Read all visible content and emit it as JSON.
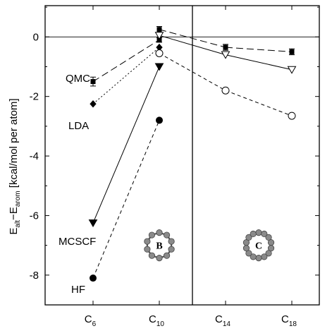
{
  "chart_data": {
    "type": "line",
    "ylabel": {
      "pre": "E",
      "sub1": "alt",
      "mid": "−E",
      "sub2": "arom",
      "post": " [kcal/mol per atom]"
    },
    "ylim": [
      -9,
      1.05
    ],
    "y_ticks": [
      0,
      -2,
      -4,
      -6,
      -8
    ],
    "y_tick_labels": [
      "0",
      "-2",
      "-4",
      "-6",
      "-8"
    ],
    "categories": [
      {
        "base": "C",
        "sub": "6"
      },
      {
        "base": "C",
        "sub": "10"
      },
      {
        "base": "C",
        "sub": "14"
      },
      {
        "base": "C",
        "sub": "18"
      }
    ],
    "divider_between": [
      1,
      2
    ],
    "zero_line": true,
    "series": [
      {
        "name": "QMC",
        "marker": "square-errorbar",
        "dash": "10,5",
        "values": [
          [
            0,
            -1.5
          ],
          [
            1,
            -0.1
          ],
          [
            1,
            0.25
          ],
          [
            2,
            -0.35
          ],
          [
            3,
            -0.5
          ]
        ],
        "links": [
          [
            0,
            1
          ],
          [
            2,
            3
          ],
          [
            3,
            4
          ]
        ],
        "err": [
          0.15,
          0.08,
          0.1,
          0.1,
          0.1
        ]
      },
      {
        "name": "LDA",
        "marker": "diamond",
        "dash": "2,3",
        "values": [
          [
            0,
            -2.25
          ],
          [
            1,
            -0.35
          ]
        ],
        "links": [
          [
            0,
            1
          ]
        ]
      },
      {
        "name": "MCSCF",
        "marker": "triangle-down",
        "dash": "",
        "values": [
          [
            0,
            -6.25
          ],
          [
            1,
            -1.0
          ],
          [
            1,
            0.05
          ],
          [
            2,
            -0.6
          ],
          [
            3,
            -1.1
          ]
        ],
        "links": [
          [
            0,
            1
          ],
          [
            2,
            3
          ],
          [
            3,
            4
          ]
        ],
        "filled": [
          true,
          true,
          false,
          false,
          false
        ]
      },
      {
        "name": "HF",
        "marker": "circle",
        "dash": "5,4",
        "values": [
          [
            0,
            -8.1
          ],
          [
            1,
            -2.8
          ],
          [
            1,
            -0.55
          ],
          [
            2,
            -1.8
          ],
          [
            3,
            -2.65
          ]
        ],
        "links": [
          [
            0,
            1
          ],
          [
            2,
            3
          ],
          [
            3,
            4
          ]
        ],
        "filled": [
          true,
          true,
          false,
          false,
          false
        ]
      }
    ],
    "series_labels": [
      "QMC",
      "LDA",
      "MCSCF",
      "HF"
    ],
    "rings": [
      {
        "letter": "B",
        "atoms": 10,
        "category_x": 1,
        "y": -7.0
      },
      {
        "letter": "C",
        "atoms": 14,
        "category_x": 2.5,
        "y": -7.0
      }
    ]
  }
}
